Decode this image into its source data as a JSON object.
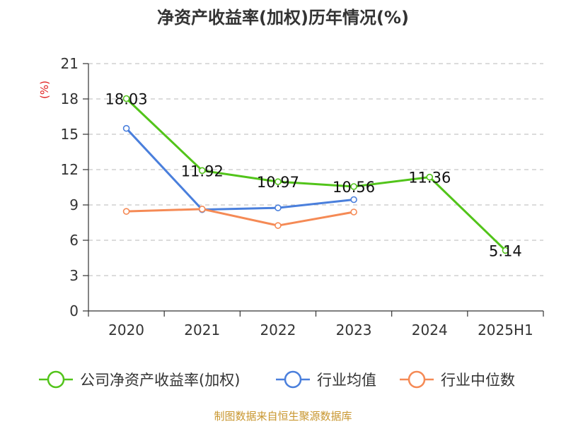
{
  "chart_data": {
    "type": "line",
    "title": "净资产收益率(加权)历年情况(%)",
    "ylabel": "(%)",
    "xlabel": "",
    "categories": [
      "2020",
      "2021",
      "2022",
      "2023",
      "2024",
      "2025H1"
    ],
    "ylim": [
      0,
      21
    ],
    "yticks": [
      0,
      3,
      6,
      9,
      12,
      15,
      18,
      21
    ],
    "grid": true,
    "legend_position": "bottom",
    "series": [
      {
        "name": "公司净资产收益率(加权)",
        "color": "#52c41a",
        "values": [
          18.03,
          11.92,
          10.97,
          10.56,
          11.36,
          5.14
        ],
        "labels": [
          "18.03",
          "11.92",
          "10.97",
          "10.56",
          "11.36",
          "5.14"
        ]
      },
      {
        "name": "行业均值",
        "color": "#4a7fdc",
        "values": [
          15.5,
          8.6,
          8.75,
          9.45,
          null,
          null
        ]
      },
      {
        "name": "行业中位数",
        "color": "#f58a55",
        "values": [
          8.45,
          8.65,
          7.25,
          8.4,
          null,
          null
        ]
      }
    ]
  },
  "source": "制图数据来自恒生聚源数据库"
}
